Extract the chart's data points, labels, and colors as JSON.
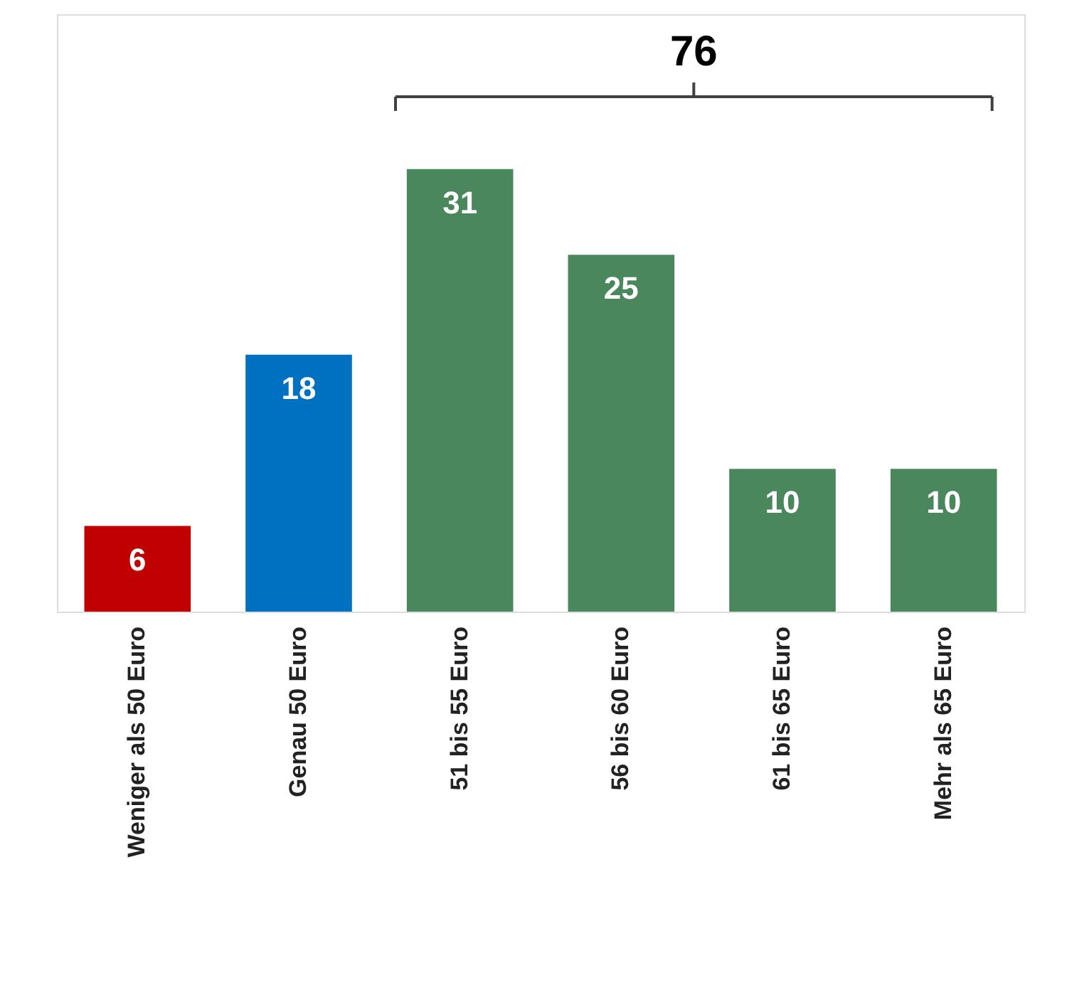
{
  "chart_data": {
    "type": "bar",
    "categories": [
      "Weniger als 50 Euro",
      "Genau 50 Euro",
      "51 bis 55 Euro",
      "56 bis 60 Euro",
      "61 bis 65 Euro",
      "Mehr als 65 Euro"
    ],
    "values": [
      6,
      18,
      31,
      25,
      10,
      10
    ],
    "colors": [
      "#c00000",
      "#0070c0",
      "#4a875c",
      "#4a875c",
      "#4a875c",
      "#4a875c"
    ],
    "data_labels": true,
    "tick_labels": "x",
    "grid": false,
    "annotations": [
      "76"
    ]
  }
}
